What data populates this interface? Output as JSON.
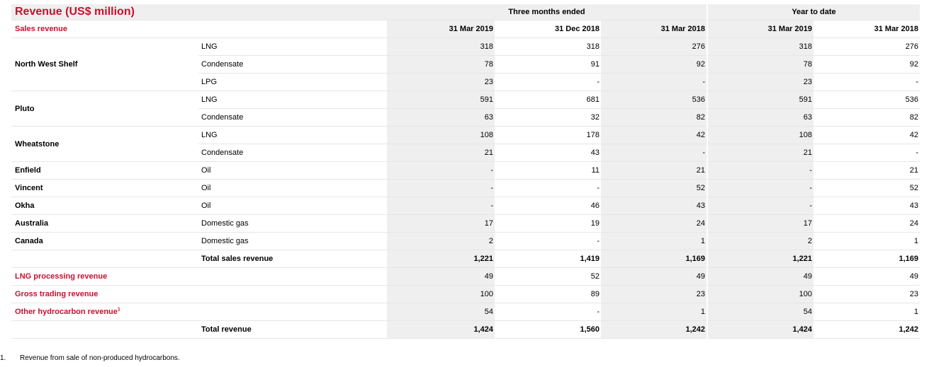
{
  "title": "Revenue (US$ million)",
  "colors": {
    "accent": "#c8102e",
    "shade": "#efefef"
  },
  "groups": {
    "three_months": "Three months ended",
    "ytd": "Year to date"
  },
  "section_label": "Sales revenue",
  "columns": [
    "31 Mar 2019",
    "31 Dec 2018",
    "31 Mar 2018",
    "31 Mar 2019",
    "31 Mar 2018"
  ],
  "sites": {
    "nws": "North West Shelf",
    "pluto": "Pluto",
    "wheatstone": "Wheatstone",
    "enfield": "Enfield",
    "vincent": "Vincent",
    "okha": "Okha",
    "australia": "Australia",
    "canada": "Canada"
  },
  "rows": [
    {
      "product": "LNG",
      "values": [
        "318",
        "318",
        "276",
        "318",
        "276"
      ]
    },
    {
      "product": "Condensate",
      "values": [
        "78",
        "91",
        "92",
        "78",
        "92"
      ]
    },
    {
      "product": "LPG",
      "values": [
        "23",
        "-",
        "-",
        "23",
        "-"
      ]
    },
    {
      "product": "LNG",
      "values": [
        "591",
        "681",
        "536",
        "591",
        "536"
      ]
    },
    {
      "product": "Condensate",
      "values": [
        "63",
        "32",
        "82",
        "63",
        "82"
      ]
    },
    {
      "product": "LNG",
      "values": [
        "108",
        "178",
        "42",
        "108",
        "42"
      ]
    },
    {
      "product": "Condensate",
      "values": [
        "21",
        "43",
        "-",
        "21",
        "-"
      ]
    },
    {
      "product": "Oil",
      "values": [
        "-",
        "11",
        "21",
        "-",
        "21"
      ]
    },
    {
      "product": "Oil",
      "values": [
        "-",
        "-",
        "52",
        "-",
        "52"
      ]
    },
    {
      "product": "Oil",
      "values": [
        "-",
        "46",
        "43",
        "-",
        "43"
      ]
    },
    {
      "product": "Domestic gas",
      "values": [
        "17",
        "19",
        "24",
        "17",
        "24"
      ]
    },
    {
      "product": "Domestic gas",
      "values": [
        "2",
        "-",
        "1",
        "2",
        "1"
      ]
    },
    {
      "product": "Total sales revenue",
      "values": [
        "1,221",
        "1,419",
        "1,169",
        "1,221",
        "1,169"
      ]
    },
    {
      "label": "LNG processing revenue",
      "values": [
        "49",
        "52",
        "49",
        "49",
        "49"
      ]
    },
    {
      "label": "Gross trading revenue",
      "values": [
        "100",
        "89",
        "23",
        "100",
        "23"
      ]
    },
    {
      "label": "Other hydrocarbon revenue",
      "sup": "1",
      "values": [
        "54",
        "-",
        "1",
        "54",
        "1"
      ]
    },
    {
      "product": "Total revenue",
      "values": [
        "1,424",
        "1,560",
        "1,242",
        "1,424",
        "1,242"
      ]
    }
  ],
  "footnote": {
    "number": "1.",
    "text": "Revenue from sale of non-produced hydrocarbons."
  }
}
